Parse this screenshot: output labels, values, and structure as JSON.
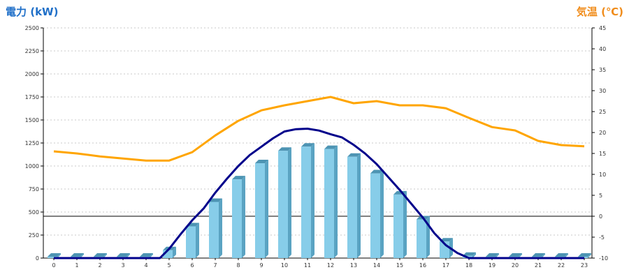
{
  "left_axis_title": "電力 (kW)",
  "right_axis_title": "気温 (℃)",
  "colors": {
    "left_title": "#1f6fc8",
    "right_title": "#f08c1a",
    "bar_front": "#87cde9",
    "bar_side": "#5aa3c2",
    "bar_top": "#4d94b3",
    "power_line": "#00008b",
    "temp_line": "#ffa500",
    "grid": "#c8c8c8",
    "zero_line": "#000000"
  },
  "chart_data": {
    "type": "bar",
    "categories": [
      "0",
      "1",
      "2",
      "3",
      "4",
      "5",
      "6",
      "7",
      "8",
      "9",
      "10",
      "11",
      "12",
      "13",
      "14",
      "15",
      "16",
      "17",
      "18",
      "19",
      "20",
      "21",
      "22",
      "23"
    ],
    "left_axis": {
      "label": "電力 (kW)",
      "ylim": [
        0,
        2500
      ],
      "ticks": [
        0,
        250,
        500,
        750,
        1000,
        1250,
        1500,
        1750,
        2000,
        2250,
        2500
      ]
    },
    "right_axis": {
      "label": "気温 (℃)",
      "ylim": [
        -10,
        45
      ],
      "ticks": [
        -10,
        -5,
        0,
        5,
        10,
        15,
        20,
        25,
        30,
        35,
        40,
        45
      ]
    },
    "grid": true,
    "series": [
      {
        "type": "bar",
        "axis": "left",
        "values": [
          15,
          15,
          15,
          15,
          15,
          85,
          345,
          610,
          855,
          1030,
          1165,
          1210,
          1185,
          1100,
          920,
          690,
          420,
          180,
          25,
          15,
          15,
          15,
          15,
          15
        ]
      },
      {
        "type": "line",
        "axis": "left",
        "x": [
          0,
          1,
          2,
          3,
          4,
          4.6,
          5,
          5.5,
          6,
          6.5,
          7,
          7.5,
          8,
          8.5,
          9,
          9.5,
          10,
          10.5,
          11,
          11.5,
          12,
          12.5,
          13,
          13.5,
          14,
          14.5,
          15,
          15.5,
          16,
          16.5,
          17,
          17.5,
          18,
          19,
          20,
          21,
          22,
          23
        ],
        "values": [
          0,
          0,
          0,
          0,
          0,
          0,
          100,
          260,
          410,
          540,
          710,
          860,
          1000,
          1120,
          1210,
          1300,
          1375,
          1400,
          1405,
          1385,
          1345,
          1310,
          1230,
          1135,
          1020,
          880,
          740,
          590,
          440,
          270,
          140,
          55,
          0,
          0,
          0,
          0,
          0,
          0
        ]
      },
      {
        "type": "line",
        "axis": "right",
        "values": [
          15.5,
          15.0,
          14.3,
          13.8,
          13.3,
          13.3,
          15.3,
          19.3,
          22.8,
          25.3,
          26.5,
          27.5,
          28.5,
          27.0,
          27.5,
          26.5,
          26.5,
          25.8,
          23.5,
          21.3,
          20.5,
          18.0,
          17.0,
          16.7
        ]
      }
    ]
  }
}
